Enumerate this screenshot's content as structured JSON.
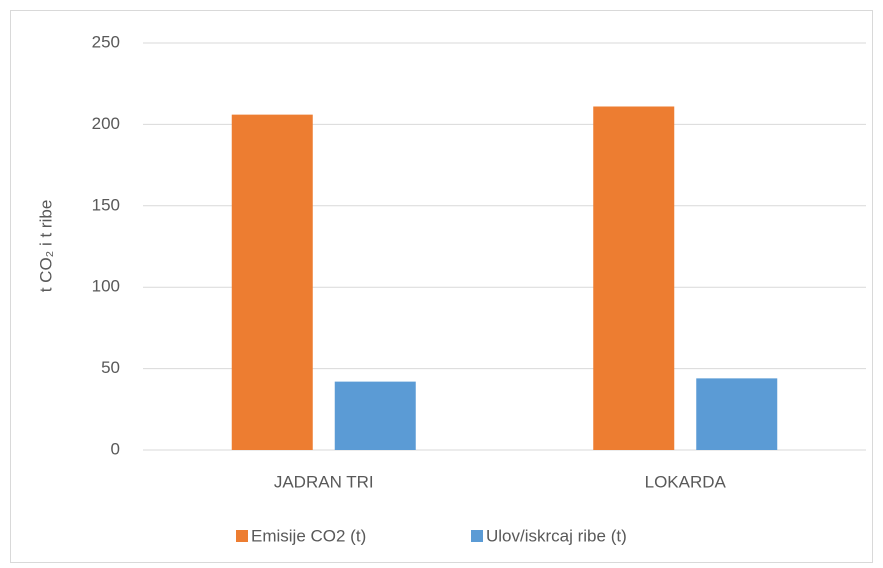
{
  "chart_data": {
    "type": "bar",
    "ylabel": "t CO₂ i t ribe",
    "categories": [
      "JADRAN TRI",
      "LOKARDA"
    ],
    "series": [
      {
        "name": "Emisije CO2 (t)",
        "color": "#ed7d31",
        "values": [
          206,
          211
        ]
      },
      {
        "name": "Ulov/iskrcaj ribe (t)",
        "color": "#5b9bd5",
        "values": [
          42,
          44
        ]
      }
    ],
    "ylim": [
      0,
      250
    ],
    "yticks": [
      0,
      50,
      100,
      150,
      200,
      250
    ],
    "grid": true,
    "legend": "bottom"
  }
}
